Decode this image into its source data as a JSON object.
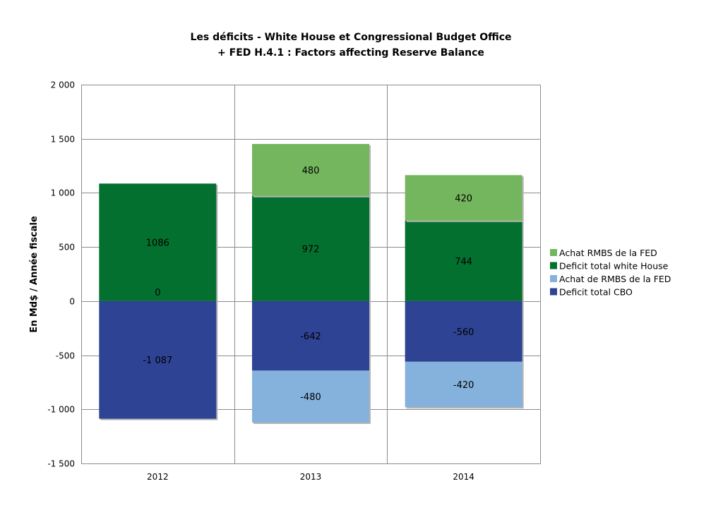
{
  "chart_data": {
    "type": "bar",
    "stacked": true,
    "title": "Les déficits - White House et Congressional Budget Office",
    "subtitle": "+ FED H.4.1 : Factors affecting Reserve Balance",
    "ylabel": "En Md$ / Année fiscale",
    "xlabel": "",
    "ylim": [
      -1500,
      2000
    ],
    "yticks": [
      2000,
      1500,
      1000,
      500,
      0,
      -500,
      -1000,
      -1500
    ],
    "ytick_labels": [
      "2 000",
      "1 500",
      "1 000",
      "500",
      "0",
      "-500",
      "-1 000",
      "-1 500"
    ],
    "categories": [
      "2012",
      "2013",
      "2014"
    ],
    "grid": true,
    "legend_position": "right",
    "series": [
      {
        "name": "Achat RMBS de la FED",
        "color": "#74b65e",
        "values": [
          0,
          480,
          420
        ],
        "labels": [
          "",
          "480",
          "420"
        ]
      },
      {
        "name": "Deficit total white House",
        "color": "#04702f",
        "values": [
          1086,
          972,
          744
        ],
        "labels": [
          "1086",
          "972",
          "744"
        ]
      },
      {
        "name": "Achat de RMBS de la FED",
        "color": "#84b2dc",
        "values": [
          0,
          -480,
          -420
        ],
        "labels": [
          "0",
          "-480",
          "-420"
        ]
      },
      {
        "name": "Deficit total CBO",
        "color": "#2e4393",
        "values": [
          -1087,
          -642,
          -560
        ],
        "labels": [
          "-1 087",
          "-642",
          "-560"
        ]
      }
    ],
    "stack_order": {
      "positive": [
        "Deficit total white House",
        "Achat RMBS de la FED"
      ],
      "negative": [
        "Deficit total CBO",
        "Achat de RMBS de la FED"
      ]
    }
  }
}
